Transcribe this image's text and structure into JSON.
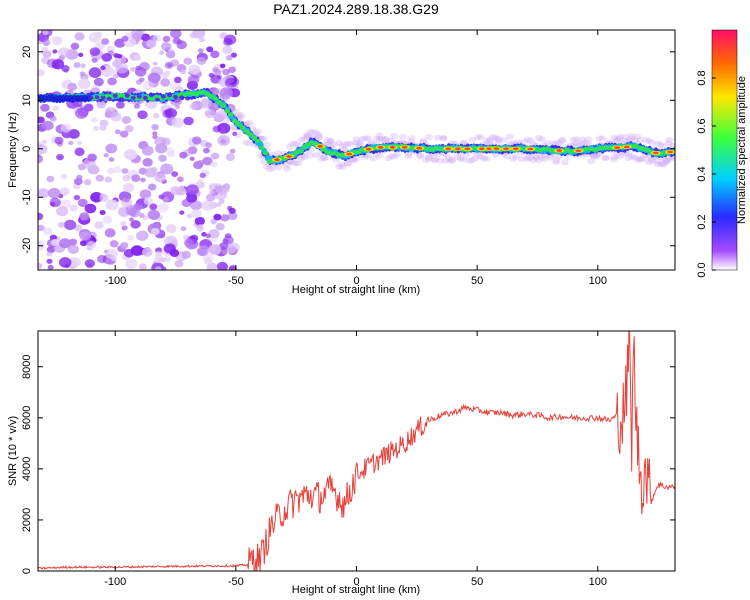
{
  "chart_data": [
    {
      "type": "heatmap",
      "title": "PAZ1.2024.289.18.38.G29",
      "xlabel": "Height of straight line (km)",
      "ylabel": "Frequency (Hz)",
      "xlim": [
        -132,
        132
      ],
      "ylim": [
        -25,
        24.5
      ],
      "xticks": [
        -100,
        -50,
        0,
        50,
        100
      ],
      "yticks": [
        -20,
        -10,
        0,
        10,
        20
      ],
      "colorbar": {
        "label": "Normalized spectral amplitude",
        "range": [
          0,
          1
        ],
        "ticks": [
          "0.0",
          "0.2",
          "0.4",
          "0.6",
          "0.8"
        ],
        "tick_values": [
          0.0,
          0.2,
          0.4,
          0.6,
          0.8
        ]
      },
      "ridge": {
        "description_points": [
          {
            "x": -132,
            "y": 10.5
          },
          {
            "x": -120,
            "y": 10.5
          },
          {
            "x": -100,
            "y": 10.8
          },
          {
            "x": -80,
            "y": 10.5
          },
          {
            "x": -70,
            "y": 11.2
          },
          {
            "x": -62,
            "y": 11.5
          },
          {
            "x": -55,
            "y": 9.0
          },
          {
            "x": -50,
            "y": 5.5
          },
          {
            "x": -45,
            "y": 3.5
          },
          {
            "x": -40,
            "y": 1.0
          },
          {
            "x": -36,
            "y": -2.5
          },
          {
            "x": -30,
            "y": -2.0
          },
          {
            "x": -25,
            "y": -1.0
          },
          {
            "x": -18,
            "y": 1.5
          },
          {
            "x": -12,
            "y": -0.5
          },
          {
            "x": -5,
            "y": -1.5
          },
          {
            "x": 0,
            "y": -0.5
          },
          {
            "x": 10,
            "y": 0.3
          },
          {
            "x": 20,
            "y": 0.3
          },
          {
            "x": 30,
            "y": 0.0
          },
          {
            "x": 50,
            "y": 0.0
          },
          {
            "x": 70,
            "y": 0.0
          },
          {
            "x": 90,
            "y": -0.5
          },
          {
            "x": 100,
            "y": 0.0
          },
          {
            "x": 110,
            "y": 0.3
          },
          {
            "x": 115,
            "y": 0.5
          },
          {
            "x": 125,
            "y": -1.0
          },
          {
            "x": 132,
            "y": -0.5
          }
        ]
      }
    },
    {
      "type": "line",
      "xlabel": "Height of straight line (km)",
      "ylabel": "SNR (10 * v/v)",
      "xlim": [
        -132,
        132
      ],
      "ylim": [
        0,
        9400
      ],
      "xticks": [
        -100,
        -50,
        0,
        50,
        100
      ],
      "yticks": [
        0,
        2000,
        4000,
        6000,
        8000
      ],
      "color": "#e8403a",
      "series": [
        {
          "x": [
            -132,
            -120,
            -100,
            -80,
            -60,
            -50,
            -45,
            -42,
            -40,
            -35,
            -30,
            -25,
            -20,
            -15,
            -10,
            -5,
            0,
            5,
            10,
            15,
            20,
            25,
            30,
            35,
            40,
            45,
            50,
            55,
            60,
            65,
            70,
            75,
            80,
            85,
            90,
            95,
            100,
            105,
            108,
            110,
            111,
            112,
            113,
            114,
            115,
            116,
            118,
            120,
            122,
            125,
            128,
            132
          ],
          "values": [
            100,
            150,
            150,
            180,
            200,
            200,
            250,
            600,
            400,
            1800,
            2400,
            2800,
            3000,
            2900,
            3200,
            2600,
            3800,
            4100,
            4400,
            4700,
            5000,
            5500,
            5900,
            6100,
            6200,
            6400,
            6300,
            6200,
            6200,
            6100,
            6150,
            6100,
            6000,
            6050,
            6000,
            6000,
            6000,
            5900,
            6100,
            5900,
            6500,
            7000,
            9200,
            5000,
            8800,
            5500,
            3500,
            4000,
            2700,
            3400,
            3300,
            3300
          ]
        }
      ]
    }
  ]
}
